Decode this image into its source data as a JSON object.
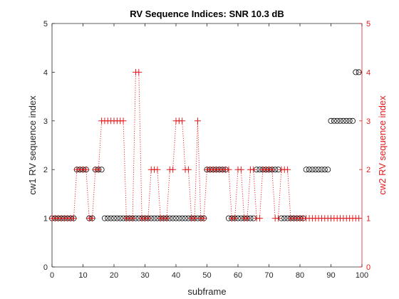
{
  "chart_data": {
    "type": "scatter",
    "title": "RV Sequence Indices: SNR 10.3 dB",
    "xlabel": "subframe",
    "ylabel": "cw1  RV sequence index",
    "ylabel_right": "cw2  RV sequence index",
    "xlim": [
      0,
      100
    ],
    "ylim": [
      0,
      5
    ],
    "xticks": [
      "0",
      "10",
      "20",
      "30",
      "40",
      "50",
      "60",
      "70",
      "80",
      "90",
      "100"
    ],
    "yticks": [
      "0",
      "1",
      "2",
      "3",
      "4",
      "5"
    ],
    "yticks_right": [
      "0",
      "1",
      "2",
      "3",
      "4",
      "5"
    ],
    "grid": false,
    "colors": {
      "cw1": "#000000",
      "cw2": "#e31a1c"
    },
    "x": [
      0,
      1,
      2,
      3,
      4,
      5,
      6,
      7,
      8,
      9,
      10,
      11,
      12,
      13,
      14,
      15,
      16,
      17,
      18,
      19,
      20,
      21,
      22,
      23,
      24,
      25,
      26,
      27,
      28,
      29,
      30,
      31,
      32,
      33,
      34,
      35,
      36,
      37,
      38,
      39,
      40,
      41,
      42,
      43,
      44,
      45,
      46,
      47,
      48,
      49,
      50,
      51,
      52,
      53,
      54,
      55,
      56,
      57,
      58,
      59,
      60,
      61,
      62,
      63,
      64,
      65,
      66,
      67,
      68,
      69,
      70,
      71,
      72,
      73,
      74,
      75,
      76,
      77,
      78,
      79,
      80,
      81,
      82,
      83,
      84,
      85,
      86,
      87,
      88,
      89,
      90,
      91,
      92,
      93,
      94,
      95,
      96,
      97,
      98,
      99
    ],
    "series": [
      {
        "axis": "left",
        "marker": "circle",
        "values": [
          1,
          1,
          1,
          1,
          1,
          1,
          1,
          1,
          2,
          2,
          2,
          2,
          1,
          1,
          2,
          2,
          2,
          1,
          1,
          1,
          1,
          1,
          1,
          1,
          1,
          1,
          1,
          1,
          1,
          1,
          1,
          1,
          1,
          1,
          1,
          1,
          1,
          1,
          1,
          1,
          1,
          1,
          1,
          1,
          1,
          1,
          1,
          1,
          1,
          1,
          2,
          2,
          2,
          2,
          2,
          2,
          2,
          1,
          1,
          1,
          1,
          1,
          1,
          1,
          1,
          1,
          2,
          2,
          2,
          2,
          2,
          2,
          2,
          2,
          1,
          1,
          1,
          1,
          1,
          1,
          1,
          1,
          2,
          2,
          2,
          2,
          2,
          2,
          2,
          2,
          3,
          3,
          3,
          3,
          3,
          3,
          3,
          3,
          4,
          4
        ]
      },
      {
        "axis": "right",
        "marker": "plus",
        "line": "dotted",
        "values": [
          1,
          1,
          1,
          1,
          1,
          1,
          1,
          1,
          2,
          2,
          2,
          2,
          1,
          1,
          2,
          2,
          3,
          3,
          3,
          3,
          3,
          3,
          3,
          3,
          1,
          1,
          1,
          4,
          4,
          1,
          1,
          1,
          2,
          2,
          2,
          1,
          1,
          1,
          2,
          2,
          3,
          3,
          3,
          2,
          2,
          1,
          1,
          3,
          1,
          1,
          2,
          2,
          2,
          2,
          2,
          2,
          2,
          2,
          1,
          1,
          2,
          2,
          1,
          1,
          2,
          2,
          1,
          1,
          2,
          2,
          2,
          2,
          1,
          1,
          2,
          2,
          2,
          1,
          1,
          1,
          1,
          1,
          1,
          1,
          1,
          1,
          1,
          1,
          1,
          1,
          1,
          1,
          1,
          1,
          1,
          1,
          1,
          1,
          1,
          1
        ]
      }
    ]
  }
}
